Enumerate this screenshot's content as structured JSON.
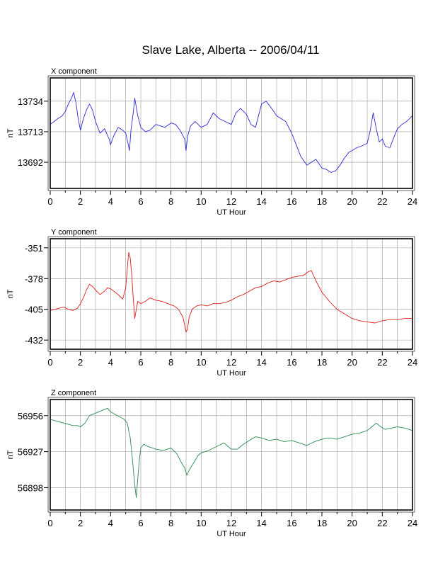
{
  "title": "Slave Lake, Alberta -- 2006/04/11",
  "chart_data": [
    {
      "type": "line",
      "panel_label": "X component",
      "xlabel": "UT Hour",
      "ylabel": "nT",
      "xlim": [
        0,
        24
      ],
      "ylim": [
        13674,
        13750
      ],
      "xticks": [
        0,
        2,
        4,
        6,
        8,
        10,
        12,
        14,
        16,
        18,
        20,
        22,
        24
      ],
      "yticks": [
        13692,
        13713,
        13734
      ],
      "grid": true,
      "color": "#2b2bd9",
      "x": [
        0,
        0.25,
        0.5,
        0.8,
        1.0,
        1.2,
        1.4,
        1.55,
        1.7,
        1.85,
        2.0,
        2.2,
        2.4,
        2.6,
        2.8,
        3.0,
        3.3,
        3.6,
        3.9,
        4.0,
        4.2,
        4.5,
        4.8,
        5.0,
        5.15,
        5.25,
        5.35,
        5.5,
        5.6,
        5.8,
        6.0,
        6.3,
        6.6,
        7.0,
        7.3,
        7.6,
        8.0,
        8.3,
        8.6,
        8.9,
        9.0,
        9.1,
        9.3,
        9.6,
        10.0,
        10.4,
        10.8,
        11.2,
        11.6,
        12.0,
        12.3,
        12.6,
        13.0,
        13.3,
        13.6,
        14.0,
        14.3,
        14.6,
        15.0,
        15.3,
        15.6,
        16.0,
        16.3,
        16.6,
        17.0,
        17.3,
        17.6,
        18.0,
        18.3,
        18.6,
        18.9,
        19.2,
        19.5,
        19.8,
        20.0,
        20.3,
        20.6,
        21.0,
        21.2,
        21.4,
        21.6,
        21.8,
        22.0,
        22.2,
        22.5,
        22.8,
        23.0,
        23.3,
        23.6,
        24.0
      ],
      "y": [
        13718,
        13720,
        13722,
        13724,
        13727,
        13732,
        13736,
        13740,
        13733,
        13722,
        13714,
        13722,
        13728,
        13732,
        13728,
        13720,
        13712,
        13715,
        13708,
        13704,
        13710,
        13716,
        13714,
        13712,
        13705,
        13700,
        13714,
        13726,
        13736,
        13724,
        13716,
        13713,
        13714,
        13718,
        13717,
        13716,
        13719,
        13718,
        13714,
        13708,
        13700,
        13710,
        13717,
        13720,
        13716,
        13718,
        13726,
        13722,
        13720,
        13718,
        13726,
        13729,
        13725,
        13718,
        13716,
        13732,
        13734,
        13730,
        13724,
        13722,
        13720,
        13712,
        13704,
        13696,
        13690,
        13692,
        13694,
        13688,
        13687,
        13685,
        13686,
        13690,
        13695,
        13699,
        13700,
        13702,
        13703,
        13705,
        13714,
        13726,
        13715,
        13706,
        13708,
        13703,
        13702,
        13710,
        13715,
        13718,
        13720,
        13724
      ]
    },
    {
      "type": "line",
      "panel_label": "Y component",
      "xlabel": "UT Hour",
      "ylabel": "nT",
      "xlim": [
        0,
        24
      ],
      "ylim": [
        -440,
        -343
      ],
      "xticks": [
        0,
        2,
        4,
        6,
        8,
        10,
        12,
        14,
        16,
        18,
        20,
        22,
        24
      ],
      "yticks": [
        -351,
        -378,
        -405,
        -432
      ],
      "grid": true,
      "color": "#e21b1b",
      "x": [
        0,
        0.3,
        0.6,
        0.9,
        1.2,
        1.5,
        1.8,
        2.0,
        2.2,
        2.4,
        2.6,
        2.8,
        3.0,
        3.3,
        3.6,
        3.8,
        4.0,
        4.2,
        4.5,
        4.8,
        5.0,
        5.1,
        5.2,
        5.3,
        5.4,
        5.5,
        5.6,
        5.7,
        5.8,
        6.0,
        6.3,
        6.6,
        7.0,
        7.4,
        7.8,
        8.2,
        8.5,
        8.8,
        9.0,
        9.1,
        9.2,
        9.4,
        9.7,
        10.0,
        10.4,
        10.8,
        11.2,
        11.6,
        12.0,
        12.4,
        12.8,
        13.2,
        13.6,
        14.0,
        14.4,
        14.8,
        15.2,
        15.6,
        16.0,
        16.4,
        16.8,
        17.1,
        17.3,
        17.6,
        18.0,
        18.5,
        19.0,
        19.5,
        20.0,
        20.5,
        21.0,
        21.5,
        22.0,
        22.5,
        23.0,
        23.5,
        24.0
      ],
      "y": [
        -406,
        -405,
        -404,
        -403,
        -405,
        -406,
        -404,
        -400,
        -395,
        -388,
        -383,
        -385,
        -388,
        -392,
        -389,
        -386,
        -387,
        -389,
        -392,
        -396,
        -386,
        -370,
        -355,
        -360,
        -375,
        -395,
        -413,
        -405,
        -398,
        -400,
        -398,
        -395,
        -397,
        -398,
        -400,
        -402,
        -405,
        -412,
        -425,
        -422,
        -412,
        -405,
        -402,
        -401,
        -402,
        -400,
        -400,
        -399,
        -397,
        -394,
        -392,
        -389,
        -386,
        -385,
        -382,
        -380,
        -381,
        -379,
        -377,
        -376,
        -375,
        -372,
        -371,
        -380,
        -390,
        -398,
        -405,
        -409,
        -413,
        -415,
        -416,
        -417,
        -415,
        -414,
        -414,
        -413,
        -413
      ]
    },
    {
      "type": "line",
      "panel_label": "Z component",
      "xlabel": "UT Hour",
      "ylabel": "nT",
      "xlim": [
        0,
        24
      ],
      "ylim": [
        56880,
        56969
      ],
      "xticks": [
        0,
        2,
        4,
        6,
        8,
        10,
        12,
        14,
        16,
        18,
        20,
        22,
        24
      ],
      "yticks": [
        56898,
        56927,
        56956
      ],
      "grid": true,
      "color": "#2b8a4f",
      "x": [
        0,
        0.3,
        0.6,
        0.9,
        1.2,
        1.5,
        1.8,
        2.0,
        2.3,
        2.6,
        3.0,
        3.4,
        3.8,
        4.0,
        4.3,
        4.6,
        4.9,
        5.1,
        5.3,
        5.45,
        5.6,
        5.7,
        5.8,
        5.9,
        6.0,
        6.2,
        6.5,
        7.0,
        7.5,
        8.0,
        8.4,
        8.7,
        8.9,
        9.05,
        9.2,
        9.5,
        9.8,
        10.0,
        10.5,
        11.0,
        11.5,
        12.0,
        12.4,
        12.8,
        13.2,
        13.6,
        14.0,
        14.5,
        15.0,
        15.5,
        16.0,
        16.5,
        17.0,
        17.5,
        18.0,
        18.5,
        19.0,
        19.5,
        20.0,
        20.5,
        21.0,
        21.3,
        21.6,
        21.9,
        22.2,
        22.6,
        23.0,
        23.5,
        24.0
      ],
      "y": [
        56953,
        56952,
        56951,
        56950,
        56949,
        56948,
        56948,
        56947,
        56950,
        56956,
        56958,
        56960,
        56962,
        56959,
        56957,
        56955,
        56953,
        56950,
        56938,
        56920,
        56900,
        56890,
        56905,
        56920,
        56930,
        56933,
        56931,
        56929,
        56928,
        56930,
        56925,
        56918,
        56914,
        56908,
        56912,
        56918,
        56924,
        56926,
        56928,
        56931,
        56934,
        56929,
        56929,
        56933,
        56936,
        56939,
        56938,
        56936,
        56937,
        56935,
        56936,
        56934,
        56932,
        56935,
        56937,
        56938,
        56937,
        56939,
        56941,
        56942,
        56944,
        56947,
        56950,
        56947,
        56945,
        56946,
        56947,
        56946,
        56944
      ]
    }
  ]
}
